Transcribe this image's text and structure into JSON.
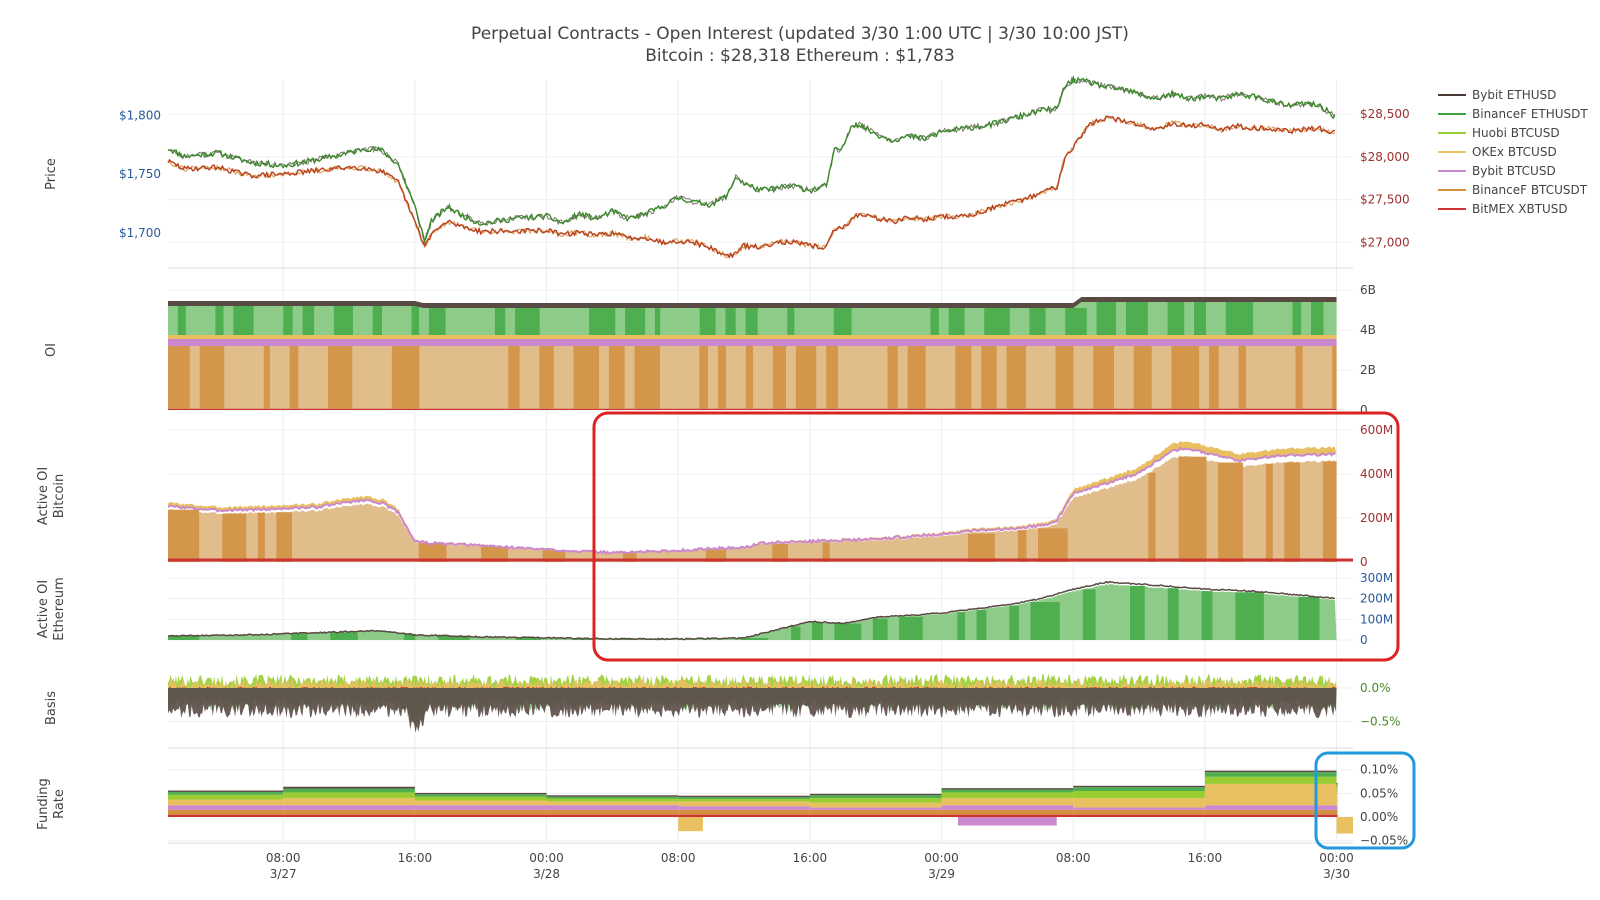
{
  "chart_data": {
    "type": "line",
    "title_line1": "Perpetual Contracts - Open Interest   (updated   3/30 1:00 UTC   |   3/30 10:00 JST)",
    "title_line2": "Bitcoin : $28,318    Ethereum : $1,783",
    "legend": [
      {
        "name": "Bybit ETHUSD",
        "color": "#4a3a36"
      },
      {
        "name": "BinanceF ETHUSDT",
        "color": "#3da33d"
      },
      {
        "name": "Huobi BTCUSD",
        "color": "#9acd32"
      },
      {
        "name": "OKEx BTCUSD",
        "color": "#e8c060"
      },
      {
        "name": "Bybit BTCUSD",
        "color": "#cc88cc"
      },
      {
        "name": "BinanceF BTCUSDT",
        "color": "#d4913f"
      },
      {
        "name": "BitMEX XBTUSD",
        "color": "#cc3333"
      }
    ],
    "x_ticks": [
      {
        "t": 8,
        "line1": "08:00",
        "line2": "3/27"
      },
      {
        "t": 16,
        "line1": "16:00",
        "line2": ""
      },
      {
        "t": 24,
        "line1": "00:00",
        "line2": "3/28"
      },
      {
        "t": 32,
        "line1": "08:00",
        "line2": ""
      },
      {
        "t": 40,
        "line1": "16:00",
        "line2": ""
      },
      {
        "t": 48,
        "line1": "00:00",
        "line2": "3/29"
      },
      {
        "t": 56,
        "line1": "08:00",
        "line2": ""
      },
      {
        "t": 64,
        "line1": "16:00",
        "line2": ""
      },
      {
        "t": 72,
        "line1": "00:00",
        "line2": "3/30"
      }
    ],
    "x_range_hours": [
      1,
      73
    ],
    "panels": [
      {
        "id": "price",
        "label": [
          "Price"
        ],
        "left_ticks": [
          {
            "v": 1800,
            "label": "$1,800"
          },
          {
            "v": 1750,
            "label": "$1,750"
          },
          {
            "v": 1700,
            "label": "$1,700"
          }
        ],
        "right_ticks": [
          {
            "v": 28500,
            "label": "$28,500"
          },
          {
            "v": 28000,
            "label": "$28,000"
          },
          {
            "v": 27500,
            "label": "$27,500"
          },
          {
            "v": 27000,
            "label": "$27,000"
          }
        ],
        "eth_range": [
          1670,
          1830
        ],
        "btc_range": [
          26700,
          28900
        ],
        "eth_series": [
          [
            1,
            1772
          ],
          [
            2,
            1765
          ],
          [
            4,
            1768
          ],
          [
            6,
            1760
          ],
          [
            8,
            1757
          ],
          [
            10,
            1762
          ],
          [
            12,
            1768
          ],
          [
            13,
            1772
          ],
          [
            14,
            1770
          ],
          [
            15,
            1758
          ],
          [
            16,
            1722
          ],
          [
            16.6,
            1693
          ],
          [
            17,
            1710
          ],
          [
            18,
            1722
          ],
          [
            19,
            1714
          ],
          [
            20,
            1708
          ],
          [
            22,
            1712
          ],
          [
            24,
            1714
          ],
          [
            25,
            1708
          ],
          [
            26,
            1716
          ],
          [
            27,
            1712
          ],
          [
            28,
            1718
          ],
          [
            29,
            1712
          ],
          [
            30,
            1716
          ],
          [
            31,
            1722
          ],
          [
            32,
            1730
          ],
          [
            33,
            1726
          ],
          [
            34,
            1724
          ],
          [
            35,
            1732
          ],
          [
            35.5,
            1748
          ],
          [
            36,
            1742
          ],
          [
            37,
            1736
          ],
          [
            38,
            1738
          ],
          [
            39,
            1740
          ],
          [
            40,
            1736
          ],
          [
            41,
            1740
          ],
          [
            41.5,
            1770
          ],
          [
            42,
            1772
          ],
          [
            42.5,
            1792
          ],
          [
            43,
            1792
          ],
          [
            44,
            1784
          ],
          [
            45,
            1779
          ],
          [
            46,
            1782
          ],
          [
            47,
            1780
          ],
          [
            48,
            1786
          ],
          [
            49,
            1788
          ],
          [
            50,
            1790
          ],
          [
            51,
            1792
          ],
          [
            52,
            1796
          ],
          [
            53,
            1800
          ],
          [
            54,
            1804
          ],
          [
            55,
            1805
          ],
          [
            55.5,
            1825
          ],
          [
            56,
            1830
          ],
          [
            57,
            1828
          ],
          [
            58,
            1824
          ],
          [
            59,
            1822
          ],
          [
            60,
            1818
          ],
          [
            61,
            1814
          ],
          [
            62,
            1818
          ],
          [
            63,
            1814
          ],
          [
            64,
            1816
          ],
          [
            65,
            1814
          ],
          [
            66,
            1818
          ],
          [
            67,
            1816
          ],
          [
            68,
            1812
          ],
          [
            69,
            1808
          ],
          [
            70,
            1810
          ],
          [
            71,
            1808
          ],
          [
            72,
            1798
          ]
        ],
        "btc_series": [
          [
            1,
            27950
          ],
          [
            2,
            27860
          ],
          [
            4,
            27880
          ],
          [
            6,
            27780
          ],
          [
            8,
            27800
          ],
          [
            10,
            27840
          ],
          [
            12,
            27880
          ],
          [
            13,
            27870
          ],
          [
            14,
            27830
          ],
          [
            15,
            27700
          ],
          [
            16,
            27240
          ],
          [
            16.6,
            26950
          ],
          [
            17,
            27100
          ],
          [
            18,
            27240
          ],
          [
            19,
            27180
          ],
          [
            20,
            27130
          ],
          [
            22,
            27130
          ],
          [
            24,
            27140
          ],
          [
            25,
            27090
          ],
          [
            26,
            27120
          ],
          [
            27,
            27080
          ],
          [
            28,
            27110
          ],
          [
            29,
            27050
          ],
          [
            30,
            27060
          ],
          [
            31,
            27000
          ],
          [
            32,
            27020
          ],
          [
            33,
            27000
          ],
          [
            34,
            26930
          ],
          [
            35,
            26840
          ],
          [
            35.5,
            26870
          ],
          [
            36,
            26960
          ],
          [
            37,
            26940
          ],
          [
            38,
            27010
          ],
          [
            39,
            27000
          ],
          [
            40,
            26960
          ],
          [
            41,
            26940
          ],
          [
            41.5,
            27160
          ],
          [
            42,
            27160
          ],
          [
            42.5,
            27270
          ],
          [
            43,
            27330
          ],
          [
            44,
            27290
          ],
          [
            45,
            27240
          ],
          [
            46,
            27290
          ],
          [
            47,
            27270
          ],
          [
            48,
            27300
          ],
          [
            49,
            27300
          ],
          [
            50,
            27330
          ],
          [
            51,
            27400
          ],
          [
            52,
            27450
          ],
          [
            53,
            27500
          ],
          [
            54,
            27580
          ],
          [
            55,
            27650
          ],
          [
            55.5,
            28000
          ],
          [
            56,
            28120
          ],
          [
            57,
            28380
          ],
          [
            58,
            28460
          ],
          [
            59,
            28420
          ],
          [
            60,
            28380
          ],
          [
            61,
            28320
          ],
          [
            62,
            28400
          ],
          [
            63,
            28360
          ],
          [
            64,
            28380
          ],
          [
            65,
            28320
          ],
          [
            66,
            28360
          ],
          [
            67,
            28340
          ],
          [
            68,
            28330
          ],
          [
            69,
            28300
          ],
          [
            70,
            28320
          ],
          [
            71,
            28330
          ],
          [
            72,
            28280
          ]
        ]
      },
      {
        "id": "oi",
        "label": [
          "OI"
        ],
        "right_ticks": [
          {
            "v": 6,
            "label": "6B"
          },
          {
            "v": 4,
            "label": "4B"
          },
          {
            "v": 2,
            "label": "2B"
          },
          {
            "v": 0,
            "label": "0"
          }
        ],
        "ylim": [
          0,
          6
        ]
      },
      {
        "id": "active_btc",
        "label": [
          "Active OI",
          "Bitcoin"
        ],
        "right_ticks": [
          {
            "v": 600,
            "label": "600M"
          },
          {
            "v": 400,
            "label": "400M"
          },
          {
            "v": 200,
            "label": "200M"
          },
          {
            "v": 0,
            "label": "0"
          }
        ],
        "ylim": [
          0,
          600
        ],
        "total_series": [
          [
            1,
            270
          ],
          [
            4,
            250
          ],
          [
            7,
            255
          ],
          [
            10,
            265
          ],
          [
            12,
            290
          ],
          [
            13,
            300
          ],
          [
            14,
            285
          ],
          [
            15,
            240
          ],
          [
            16,
            100
          ],
          [
            17,
            90
          ],
          [
            20,
            80
          ],
          [
            24,
            60
          ],
          [
            28,
            45
          ],
          [
            32,
            55
          ],
          [
            34,
            65
          ],
          [
            36,
            70
          ],
          [
            37,
            90
          ],
          [
            40,
            100
          ],
          [
            44,
            110
          ],
          [
            48,
            135
          ],
          [
            50,
            150
          ],
          [
            52,
            160
          ],
          [
            54,
            175
          ],
          [
            55,
            200
          ],
          [
            56,
            330
          ],
          [
            58,
            380
          ],
          [
            60,
            430
          ],
          [
            62,
            540
          ],
          [
            63,
            550
          ],
          [
            64,
            530
          ],
          [
            66,
            490
          ],
          [
            68,
            510
          ],
          [
            70,
            520
          ],
          [
            72,
            520
          ]
        ]
      },
      {
        "id": "active_eth",
        "label": [
          "Active OI",
          "Ethereum"
        ],
        "right_ticks": [
          {
            "v": 300,
            "label": "300M"
          },
          {
            "v": 200,
            "label": "200M"
          },
          {
            "v": 100,
            "label": "100M"
          },
          {
            "v": 0,
            "label": "0"
          }
        ],
        "ylim": [
          0,
          300
        ],
        "total_series": [
          [
            1,
            20
          ],
          [
            6,
            25
          ],
          [
            10,
            35
          ],
          [
            14,
            45
          ],
          [
            16,
            25
          ],
          [
            20,
            15
          ],
          [
            24,
            10
          ],
          [
            28,
            5
          ],
          [
            32,
            5
          ],
          [
            36,
            10
          ],
          [
            38,
            50
          ],
          [
            40,
            90
          ],
          [
            42,
            80
          ],
          [
            44,
            110
          ],
          [
            46,
            120
          ],
          [
            48,
            130
          ],
          [
            50,
            150
          ],
          [
            52,
            170
          ],
          [
            54,
            200
          ],
          [
            56,
            245
          ],
          [
            58,
            280
          ],
          [
            60,
            270
          ],
          [
            62,
            260
          ],
          [
            64,
            245
          ],
          [
            66,
            240
          ],
          [
            68,
            230
          ],
          [
            70,
            215
          ],
          [
            72,
            200
          ]
        ]
      },
      {
        "id": "basis",
        "label": [
          "Basis"
        ],
        "right_ticks": [
          {
            "v": 0.0,
            "label": "0.0%"
          },
          {
            "v": -0.5,
            "label": "−0.5%"
          }
        ],
        "ylim": [
          -0.9,
          0.3
        ]
      },
      {
        "id": "funding",
        "label": [
          "Funding",
          "Rate"
        ],
        "right_ticks": [
          {
            "v": 0.1,
            "label": "0.10%"
          },
          {
            "v": 0.05,
            "label": "0.05%"
          },
          {
            "v": 0.0,
            "label": "0.00%"
          },
          {
            "v": -0.05,
            "label": "−0.05%"
          }
        ],
        "ylim": [
          -0.055,
          0.11
        ]
      }
    ],
    "annotations": [
      {
        "kind": "red-box",
        "color": "#dd2222"
      },
      {
        "kind": "blue-box",
        "color": "#2299dd"
      }
    ],
    "colors": {
      "eth_line": "#3a8a2a",
      "btc_line": "#b8401e",
      "green_light": "#8ccb88",
      "green_dark": "#4fae4f",
      "orange_light": "#e2bd8c",
      "orange_dark": "#d4964a",
      "gold": "#e8c060",
      "purple": "#cc88cc",
      "red": "#cc3333",
      "dark": "#5a4a44",
      "left_tick": "#2a5a9a",
      "right_price_tick": "#a03030"
    }
  }
}
